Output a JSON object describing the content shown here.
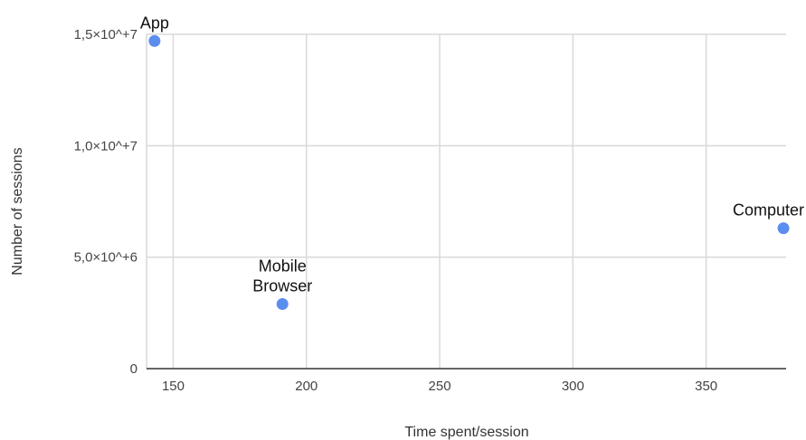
{
  "chart_data": {
    "type": "scatter",
    "title": "",
    "xlabel": "Time spent/session",
    "ylabel": "Number of sessions",
    "xlim": [
      140,
      380
    ],
    "ylim": [
      0,
      15000000
    ],
    "x_ticks": [
      150,
      200,
      250,
      300,
      350
    ],
    "x_tick_labels": [
      "150",
      "200",
      "250",
      "300",
      "350"
    ],
    "y_ticks": [
      0,
      5000000,
      10000000,
      15000000
    ],
    "y_tick_labels": [
      "0",
      "5,0×10^+6",
      "1,0×10^+7",
      "1,5×10^+7"
    ],
    "grid": true,
    "legend": "none",
    "point_color": "#5b8def",
    "points": [
      {
        "label": "App",
        "x": 143,
        "y": 14700000
      },
      {
        "label": "Mobile Browser",
        "label_lines": [
          "Mobile",
          "Browser"
        ],
        "x": 191,
        "y": 2900000
      },
      {
        "label": "Computer",
        "x": 379,
        "y": 6300000
      }
    ]
  }
}
